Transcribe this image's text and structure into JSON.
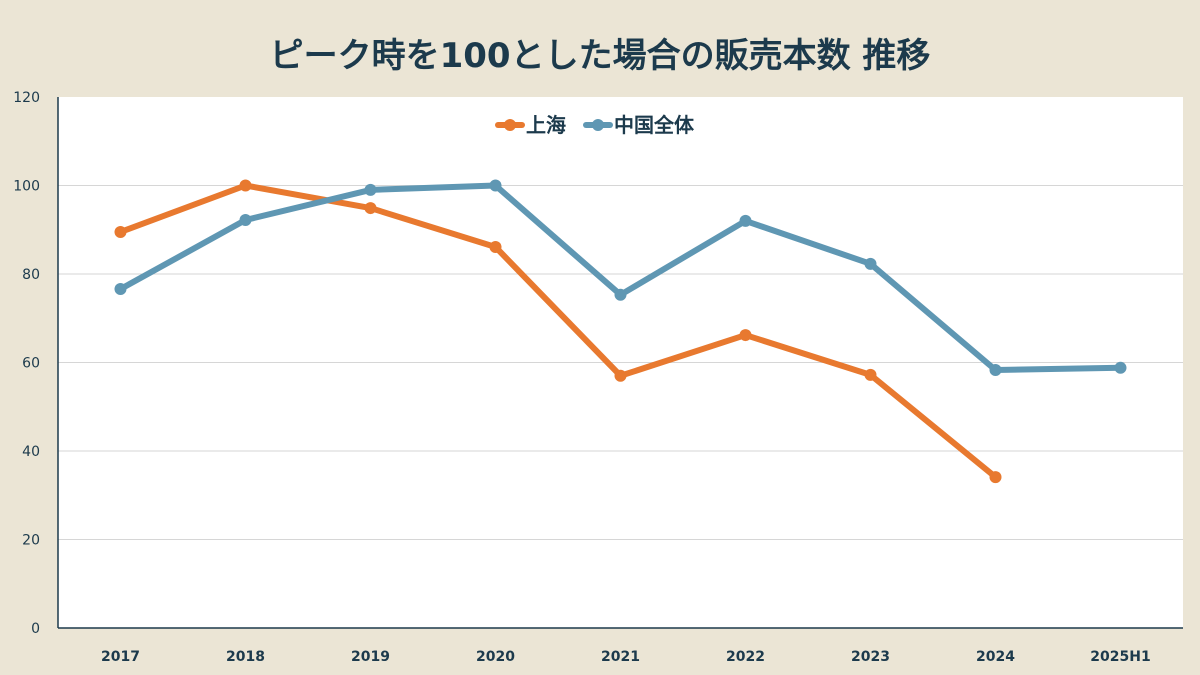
{
  "chart_data": {
    "type": "line",
    "title": "ピーク時を100とした場合の販売本数 推移",
    "xlabel": "",
    "ylabel": "",
    "categories": [
      "2017",
      "2018",
      "2019",
      "2020",
      "2021",
      "2022",
      "2023",
      "2024",
      "2025H1"
    ],
    "ylim": [
      0,
      120
    ],
    "yticks": [
      0,
      20,
      40,
      60,
      80,
      100,
      120
    ],
    "grid": true,
    "legend_position": "top-center",
    "series": [
      {
        "name": "上海",
        "color": "#e8792f",
        "values": [
          89.5,
          100,
          94.9,
          86.1,
          57,
          66.2,
          57.2,
          34.1,
          null
        ]
      },
      {
        "name": "中国全体",
        "color": "#5f97b3",
        "values": [
          76.6,
          92.2,
          99,
          100,
          75.3,
          92,
          82.3,
          58.3,
          58.8
        ]
      }
    ]
  }
}
